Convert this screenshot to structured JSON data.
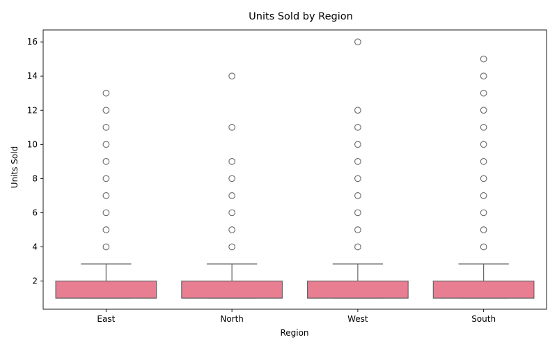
{
  "chart_data": {
    "type": "box",
    "title": "Units Sold by Region",
    "xlabel": "Region",
    "ylabel": "Units Sold",
    "categories": [
      "East",
      "North",
      "West",
      "South"
    ],
    "ylim": [
      0.35,
      16.7
    ],
    "yticks": [
      2,
      4,
      6,
      8,
      10,
      12,
      14,
      16
    ],
    "grid": false,
    "legend": "none",
    "colors": {
      "box_fill": "#e87e92",
      "box_edge": "#666666",
      "outlier_edge": "#666666"
    },
    "boxes": [
      {
        "category": "East",
        "q1": 1,
        "median": 1,
        "q3": 2,
        "whisker_low": 1,
        "whisker_high": 3,
        "outliers": [
          4,
          5,
          6,
          7,
          8,
          9,
          10,
          11,
          12,
          13
        ]
      },
      {
        "category": "North",
        "q1": 1,
        "median": 1,
        "q3": 2,
        "whisker_low": 1,
        "whisker_high": 3,
        "outliers": [
          4,
          5,
          6,
          7,
          8,
          9,
          11,
          14
        ]
      },
      {
        "category": "West",
        "q1": 1,
        "median": 1,
        "q3": 2,
        "whisker_low": 1,
        "whisker_high": 3,
        "outliers": [
          4,
          5,
          6,
          7,
          8,
          9,
          10,
          11,
          12,
          16
        ]
      },
      {
        "category": "South",
        "q1": 1,
        "median": 1,
        "q3": 2,
        "whisker_low": 1,
        "whisker_high": 3,
        "outliers": [
          4,
          5,
          6,
          7,
          8,
          9,
          10,
          11,
          12,
          13,
          14,
          15
        ]
      }
    ]
  }
}
